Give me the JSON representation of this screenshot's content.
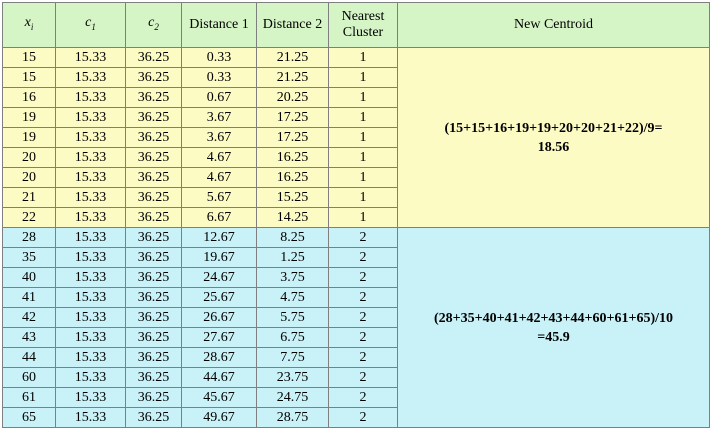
{
  "headers": {
    "xi": "x",
    "xi_sub": "i",
    "c1": "c",
    "c1_sub": "1",
    "c2": "c",
    "c2_sub": "2",
    "dist1": "Distance 1",
    "dist2": "Distance 2",
    "nearest_line1": "Nearest",
    "nearest_line2": "Cluster",
    "new_centroid": "New Centroid"
  },
  "rows": [
    {
      "xi": "15",
      "c1": "15.33",
      "c2": "36.25",
      "d1": "0.33",
      "d2": "21.25",
      "cluster": "1"
    },
    {
      "xi": "15",
      "c1": "15.33",
      "c2": "36.25",
      "d1": "0.33",
      "d2": "21.25",
      "cluster": "1"
    },
    {
      "xi": "16",
      "c1": "15.33",
      "c2": "36.25",
      "d1": "0.67",
      "d2": "20.25",
      "cluster": "1"
    },
    {
      "xi": "19",
      "c1": "15.33",
      "c2": "36.25",
      "d1": "3.67",
      "d2": "17.25",
      "cluster": "1"
    },
    {
      "xi": "19",
      "c1": "15.33",
      "c2": "36.25",
      "d1": "3.67",
      "d2": "17.25",
      "cluster": "1"
    },
    {
      "xi": "20",
      "c1": "15.33",
      "c2": "36.25",
      "d1": "4.67",
      "d2": "16.25",
      "cluster": "1"
    },
    {
      "xi": "20",
      "c1": "15.33",
      "c2": "36.25",
      "d1": "4.67",
      "d2": "16.25",
      "cluster": "1"
    },
    {
      "xi": "21",
      "c1": "15.33",
      "c2": "36.25",
      "d1": "5.67",
      "d2": "15.25",
      "cluster": "1"
    },
    {
      "xi": "22",
      "c1": "15.33",
      "c2": "36.25",
      "d1": "6.67",
      "d2": "14.25",
      "cluster": "1"
    },
    {
      "xi": "28",
      "c1": "15.33",
      "c2": "36.25",
      "d1": "12.67",
      "d2": "8.25",
      "cluster": "2"
    },
    {
      "xi": "35",
      "c1": "15.33",
      "c2": "36.25",
      "d1": "19.67",
      "d2": "1.25",
      "cluster": "2"
    },
    {
      "xi": "40",
      "c1": "15.33",
      "c2": "36.25",
      "d1": "24.67",
      "d2": "3.75",
      "cluster": "2"
    },
    {
      "xi": "41",
      "c1": "15.33",
      "c2": "36.25",
      "d1": "25.67",
      "d2": "4.75",
      "cluster": "2"
    },
    {
      "xi": "42",
      "c1": "15.33",
      "c2": "36.25",
      "d1": "26.67",
      "d2": "5.75",
      "cluster": "2"
    },
    {
      "xi": "43",
      "c1": "15.33",
      "c2": "36.25",
      "d1": "27.67",
      "d2": "6.75",
      "cluster": "2"
    },
    {
      "xi": "44",
      "c1": "15.33",
      "c2": "36.25",
      "d1": "28.67",
      "d2": "7.75",
      "cluster": "2"
    },
    {
      "xi": "60",
      "c1": "15.33",
      "c2": "36.25",
      "d1": "44.67",
      "d2": "23.75",
      "cluster": "2"
    },
    {
      "xi": "61",
      "c1": "15.33",
      "c2": "36.25",
      "d1": "45.67",
      "d2": "24.75",
      "cluster": "2"
    },
    {
      "xi": "65",
      "c1": "15.33",
      "c2": "36.25",
      "d1": "49.67",
      "d2": "28.75",
      "cluster": "2"
    }
  ],
  "centroids": {
    "cluster1_line1": "(15+15+16+19+19+20+20+21+22)/9=",
    "cluster1_line2": "18.56",
    "cluster2_line1": "(28+35+40+41+42+43+44+60+61+65)/10",
    "cluster2_line2": "=45.9"
  },
  "colors": {
    "header_bg": "#d6f5c6",
    "cluster1_bg": "#fdfbc4",
    "cluster2_bg": "#c8f2f7",
    "border": "#7f7f7f"
  }
}
